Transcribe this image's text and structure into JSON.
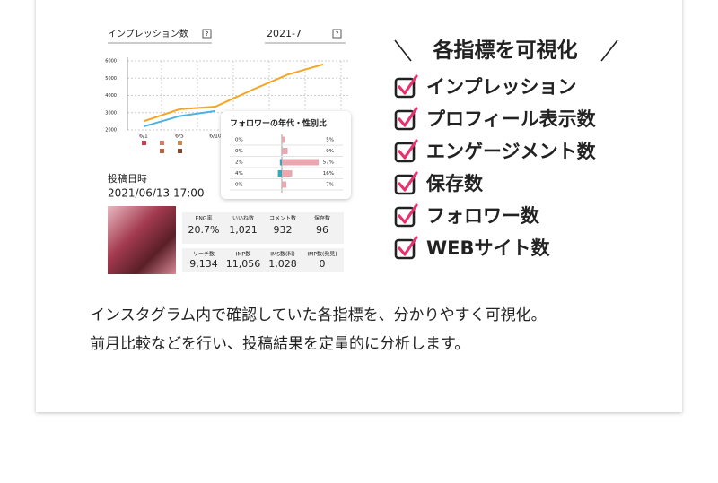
{
  "screenshot": {
    "chart": {
      "title": "インプレッション数",
      "period": "2021-7",
      "help": "?",
      "ylim": [
        2000,
        6000
      ],
      "yticks": [
        2000,
        3000,
        4000,
        5000,
        6000
      ],
      "categories": [
        "6/1",
        "6/5",
        "6/10",
        null,
        null,
        null
      ],
      "series": [
        {
          "color": "#f5a623",
          "values": [
            2500,
            3200,
            3350,
            4300,
            5200,
            5800
          ]
        },
        {
          "color": "#4ab3e0",
          "values": [
            2200,
            2800,
            3100,
            null,
            null,
            null
          ]
        }
      ]
    },
    "popup": {
      "title": "フォロワーの年代・性別比",
      "left_values": [
        0,
        0,
        2,
        4,
        0
      ],
      "left_labels": [
        "0%",
        "0%",
        "2%",
        "4%",
        "0%"
      ],
      "left_color": "#3aa6b9",
      "right_values": [
        5,
        9,
        57,
        16,
        7
      ],
      "right_labels": [
        "5%",
        "9%",
        "57%",
        "16%",
        "7%"
      ],
      "right_color": "#eba7b0"
    },
    "post": {
      "label": "投稿日時",
      "datetime": "2021/06/13 17:00"
    },
    "stats": [
      [
        {
          "label": "ENG率",
          "value": "20.7%"
        },
        {
          "label": "いいね数",
          "value": "1,021"
        },
        {
          "label": "コメント数",
          "value": "932"
        },
        {
          "label": "保存数",
          "value": "96"
        }
      ],
      [
        {
          "label": "リーチ数",
          "value": "9,134"
        },
        {
          "label": "IMP数",
          "value": "11,056"
        },
        {
          "label": "IMS数(料)",
          "value": "1,028"
        },
        {
          "label": "IMP数(発見)",
          "value": "0"
        }
      ]
    ]
  },
  "features": {
    "heading": "各指標を可視化",
    "items": [
      "インプレッション",
      "プロフィール表示数",
      "エンゲージメント数",
      "保存数",
      "フォロワー数",
      "WEBサイト数"
    ]
  },
  "description": {
    "lines": [
      "インスタグラム内で確認していた各指標を、分かりやすく可視化。",
      "前月比較などを行い、投稿結果を定量的に分析します。"
    ]
  }
}
